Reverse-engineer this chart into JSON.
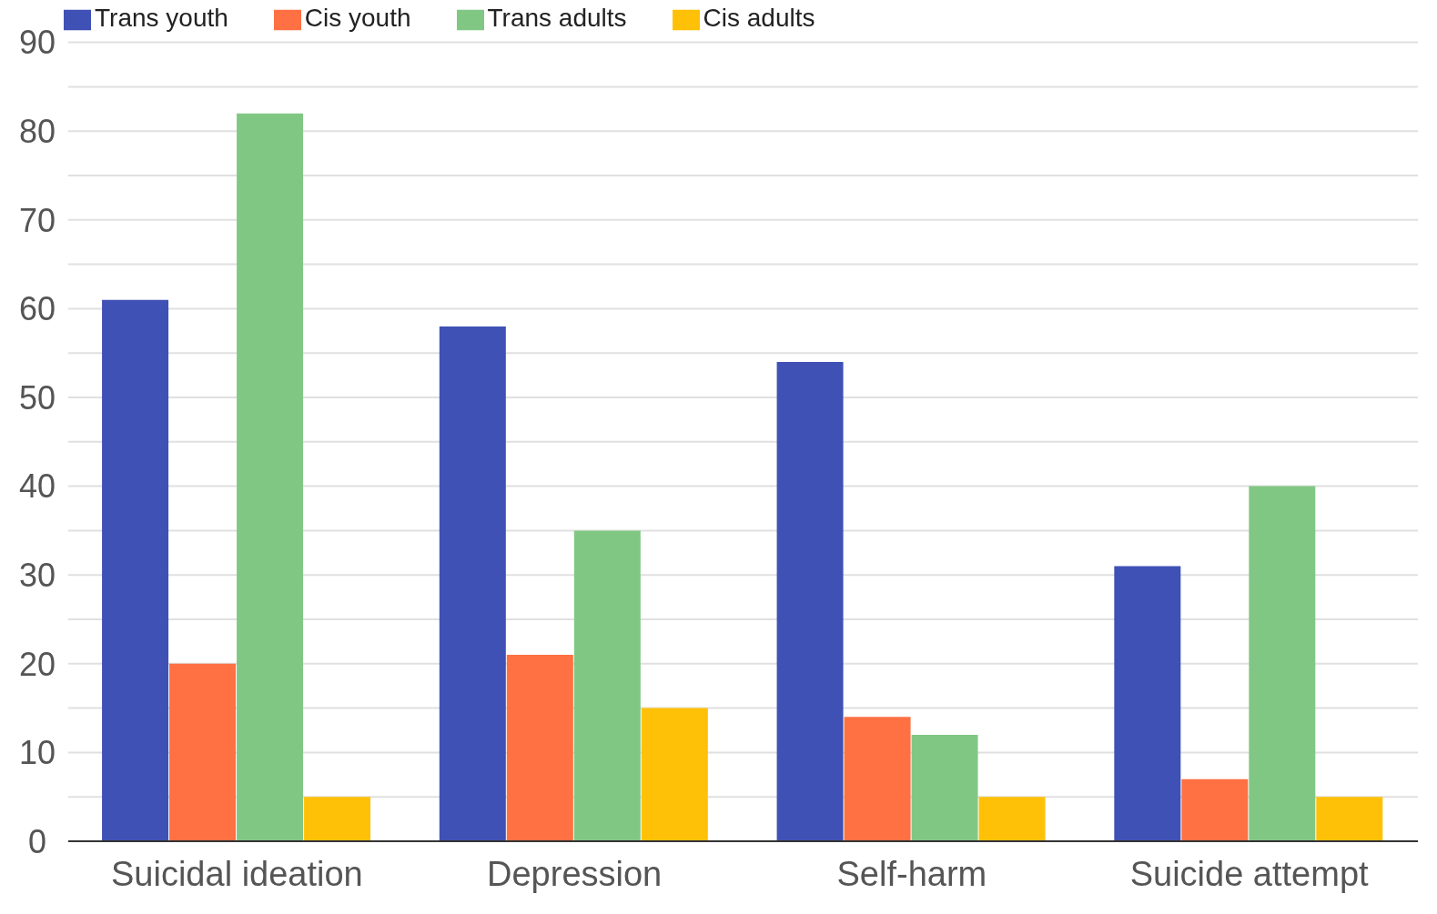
{
  "chart_data": {
    "type": "bar",
    "categories": [
      "Suicidal ideation",
      "Depression",
      "Self-harm",
      "Suicide attempt"
    ],
    "series": [
      {
        "name": "Trans youth",
        "color": "#3f51b5",
        "values": [
          61,
          58,
          54,
          31
        ]
      },
      {
        "name": "Cis youth",
        "color": "#ff7043",
        "values": [
          20,
          21,
          14,
          7
        ]
      },
      {
        "name": "Trans adults",
        "color": "#81c784",
        "values": [
          82,
          35,
          12,
          40
        ]
      },
      {
        "name": "Cis adults",
        "color": "#ffc107",
        "values": [
          5,
          15,
          5,
          5
        ]
      }
    ],
    "ylim": [
      0,
      90
    ],
    "yticks": [
      0,
      {
        "value": 5,
        "label": null
      },
      10,
      {
        "value": 15,
        "label": null
      },
      20,
      {
        "value": 25,
        "label": null
      },
      30,
      {
        "value": 35,
        "label": null
      },
      40,
      {
        "value": 45,
        "label": null
      },
      50,
      {
        "value": 55,
        "label": null
      },
      60,
      {
        "value": 65,
        "label": null
      },
      70,
      {
        "value": 75,
        "label": null
      },
      80,
      {
        "value": 85,
        "label": null
      },
      90
    ],
    "grid": "y",
    "legend": "top left"
  }
}
